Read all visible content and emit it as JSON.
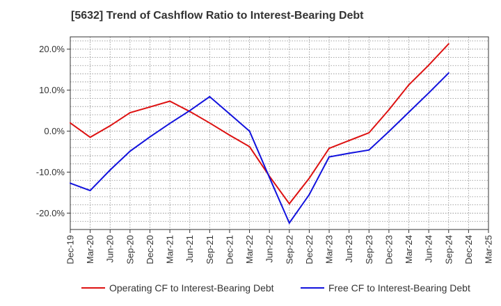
{
  "chart_data": {
    "type": "line",
    "title": "[5632]  Trend of Cashflow Ratio to Interest-Bearing Debt",
    "xlabel": "",
    "ylabel": "",
    "categories": [
      "Dec-19",
      "Mar-20",
      "Jun-20",
      "Sep-20",
      "Dec-20",
      "Mar-21",
      "Jun-21",
      "Sep-21",
      "Dec-21",
      "Mar-22",
      "Jun-22",
      "Sep-22",
      "Dec-22",
      "Mar-23",
      "Jun-23",
      "Sep-23",
      "Dec-23",
      "Mar-24",
      "Jun-24",
      "Sep-24",
      "Dec-24",
      "Mar-25"
    ],
    "ylim": [
      -24,
      23
    ],
    "yticks": [
      -20,
      -10,
      0,
      10,
      20
    ],
    "ytick_labels": [
      "-20.0%",
      "-10.0%",
      "0.0%",
      "10.0%",
      "20.0%"
    ],
    "grid": true,
    "legend_position": "bottom",
    "series": [
      {
        "name": "Operating CF to Interest-Bearing Debt",
        "color": "#dd1111",
        "values": [
          2.0,
          -1.5,
          1.3,
          4.5,
          5.9,
          7.3,
          4.8,
          2.0,
          -1.0,
          -3.8,
          -11.0,
          -17.7,
          -11.5,
          -4.2,
          -2.3,
          -0.4,
          5.2,
          11.3,
          16.1,
          21.3,
          null,
          null
        ]
      },
      {
        "name": "Free CF to Interest-Bearing Debt",
        "color": "#1111dd",
        "values": [
          -12.7,
          -14.5,
          -9.5,
          -4.9,
          -1.4,
          1.9,
          5.0,
          8.4,
          4.2,
          0.0,
          -11.3,
          -22.4,
          -15.5,
          -6.3,
          -5.4,
          -4.6,
          -0.1,
          4.6,
          9.3,
          14.2,
          null,
          null
        ]
      }
    ]
  }
}
